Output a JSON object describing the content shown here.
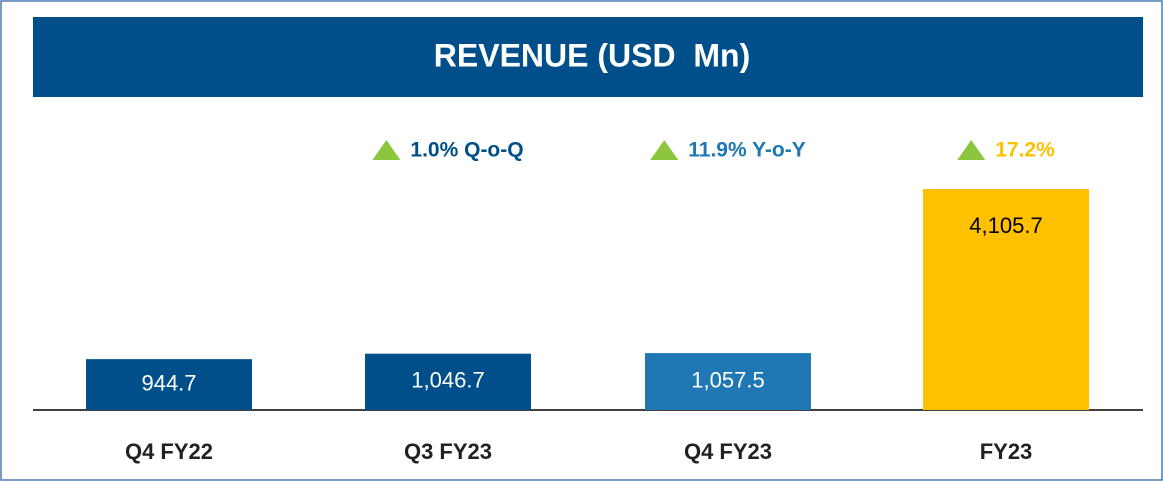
{
  "chart_data": {
    "type": "bar",
    "title": "REVENUE (USD  Mn)",
    "categories": [
      "Q4 FY22",
      "Q3 FY23",
      "Q4 FY23",
      "FY23"
    ],
    "values": [
      944.7,
      1046.7,
      1057.5,
      4105.7
    ],
    "value_labels": [
      "944.7",
      "1,046.7",
      "1,057.5",
      "4,105.7"
    ],
    "colors": [
      "#004f8a",
      "#004f8a",
      "#1f78b4",
      "#ffc000"
    ],
    "label_colors": [
      "#ffffff",
      "#ffffff",
      "#ffffff",
      "#000000"
    ],
    "annotations": [
      {
        "category": 1,
        "text": "1.0% Q-o-Q",
        "color": "#004f8a"
      },
      {
        "category": 2,
        "text": "11.9% Y-o-Y",
        "color": "#1f78b4"
      },
      {
        "category": 3,
        "text": "17.2%",
        "color": "#ffc000"
      }
    ]
  }
}
